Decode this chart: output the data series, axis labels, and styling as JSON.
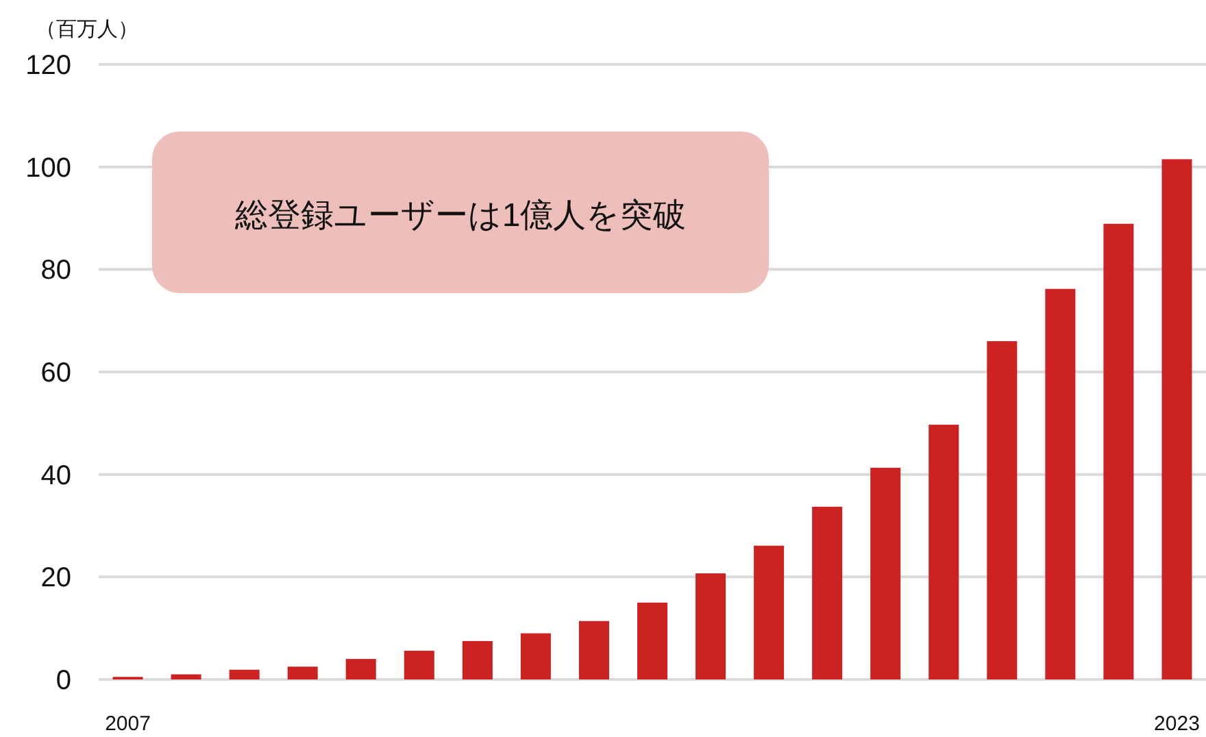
{
  "chart_data": {
    "type": "bar",
    "ylabel": "（百万人）",
    "categories": [
      "2007",
      null,
      null,
      null,
      null,
      null,
      null,
      null,
      null,
      null,
      null,
      null,
      null,
      null,
      null,
      null,
      null,
      null,
      "2023"
    ],
    "values": [
      0.5,
      1.0,
      1.9,
      2.5,
      4.0,
      5.6,
      7.5,
      9.0,
      11.4,
      15.0,
      20.7,
      26.1,
      33.7,
      41.3,
      49.7,
      66.0,
      76.2,
      88.9,
      101.5
    ],
    "color": "#cc2222",
    "ylim": [
      0,
      120
    ],
    "yticks": [
      0,
      20,
      40,
      60,
      80,
      100,
      120
    ],
    "grid": "y",
    "annotations": [
      "総登録ユーザーは1億人を突破"
    ]
  }
}
